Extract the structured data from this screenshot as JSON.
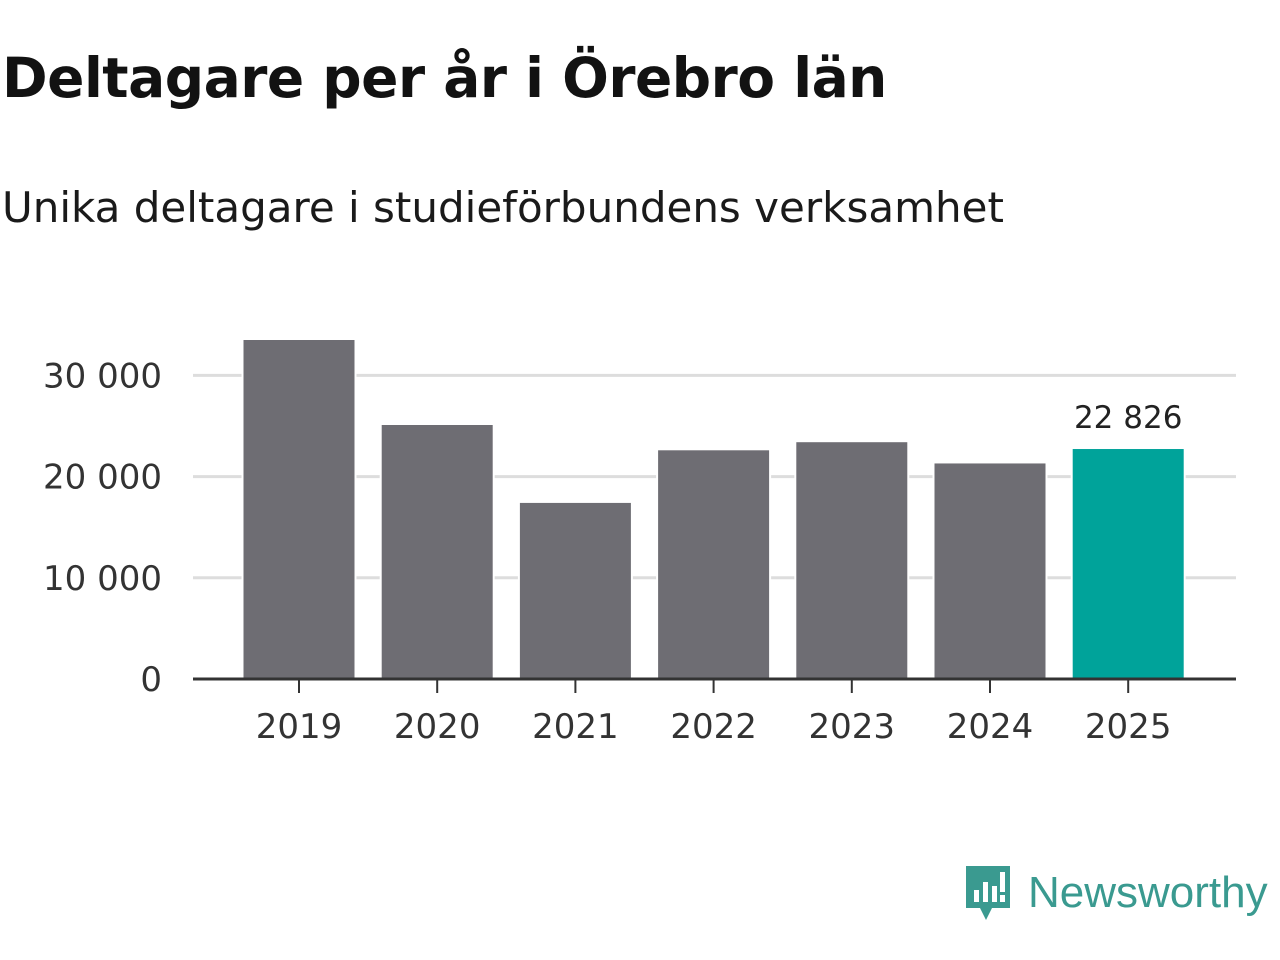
{
  "chart_data": {
    "type": "bar",
    "title": "Deltagare per år i Örebro län",
    "subtitle": "Unika deltagare i studieförbundens verksamhet",
    "categories": [
      "2019",
      "2020",
      "2021",
      "2022",
      "2023",
      "2024",
      "2025"
    ],
    "values": [
      33600,
      25200,
      17500,
      22700,
      23500,
      21400,
      22826
    ],
    "highlight_index": 6,
    "highlight_label": "22 826",
    "y_ticks": [
      0,
      10000,
      20000,
      30000
    ],
    "y_tick_labels": [
      "0",
      "10 000",
      "20 000",
      "30 000"
    ],
    "ylim": [
      0,
      33600
    ],
    "grid": true,
    "colors": {
      "bar": "#6e6d73",
      "highlight": "#00a39a",
      "grid": "#dddddd",
      "axis": "#333333"
    }
  },
  "brand": {
    "name": "Newsworthy",
    "icon": "newsworthy-logo-icon",
    "color": "#3a9a90"
  }
}
